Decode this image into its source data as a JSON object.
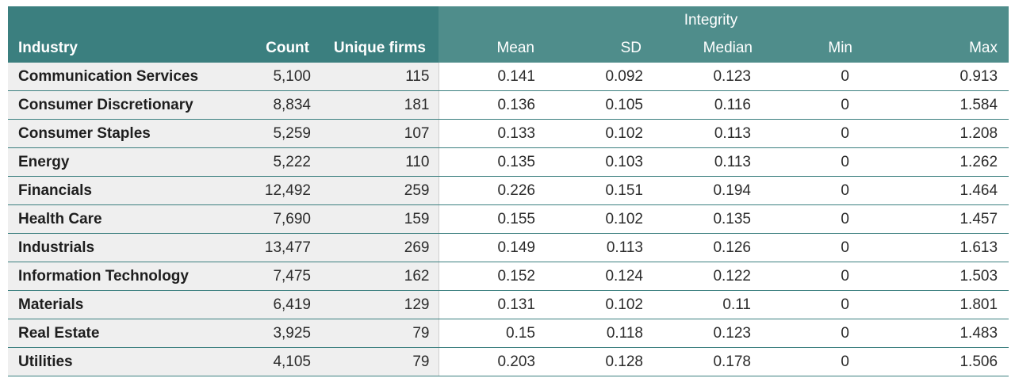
{
  "headers": {
    "group": "Integrity",
    "industry": "Industry",
    "count": "Count",
    "unique_firms": "Unique firms",
    "mean": "Mean",
    "sd": "SD",
    "median": "Median",
    "min": "Min",
    "max": "Max"
  },
  "rows": [
    {
      "industry": "Communication Services",
      "count": "5,100",
      "unique_firms": "115",
      "mean": "0.141",
      "sd": "0.092",
      "median": "0.123",
      "min": "0",
      "max": "0.913"
    },
    {
      "industry": "Consumer Discretionary",
      "count": "8,834",
      "unique_firms": "181",
      "mean": "0.136",
      "sd": "0.105",
      "median": "0.116",
      "min": "0",
      "max": "1.584"
    },
    {
      "industry": "Consumer Staples",
      "count": "5,259",
      "unique_firms": "107",
      "mean": "0.133",
      "sd": "0.102",
      "median": "0.113",
      "min": "0",
      "max": "1.208"
    },
    {
      "industry": "Energy",
      "count": "5,222",
      "unique_firms": "110",
      "mean": "0.135",
      "sd": "0.103",
      "median": "0.113",
      "min": "0",
      "max": "1.262"
    },
    {
      "industry": "Financials",
      "count": "12,492",
      "unique_firms": "259",
      "mean": "0.226",
      "sd": "0.151",
      "median": "0.194",
      "min": "0",
      "max": "1.464"
    },
    {
      "industry": "Health Care",
      "count": "7,690",
      "unique_firms": "159",
      "mean": "0.155",
      "sd": "0.102",
      "median": "0.135",
      "min": "0",
      "max": "1.457"
    },
    {
      "industry": "Industrials",
      "count": "13,477",
      "unique_firms": "269",
      "mean": "0.149",
      "sd": "0.113",
      "median": "0.126",
      "min": "0",
      "max": "1.613"
    },
    {
      "industry": "Information Technology",
      "count": "7,475",
      "unique_firms": "162",
      "mean": "0.152",
      "sd": "0.124",
      "median": "0.122",
      "min": "0",
      "max": "1.503"
    },
    {
      "industry": "Materials",
      "count": "6,419",
      "unique_firms": "129",
      "mean": "0.131",
      "sd": "0.102",
      "median": "0.11",
      "min": "0",
      "max": "1.801"
    },
    {
      "industry": "Real Estate",
      "count": "3,925",
      "unique_firms": "79",
      "mean": "0.15",
      "sd": "0.118",
      "median": "0.123",
      "min": "0",
      "max": "1.483"
    },
    {
      "industry": "Utilities",
      "count": "4,105",
      "unique_firms": "79",
      "mean": "0.203",
      "sd": "0.128",
      "median": "0.178",
      "min": "0",
      "max": "1.506"
    }
  ],
  "colors": {
    "header_dark": "#3b7f7f",
    "header_light": "#4f8d8b",
    "row_label_bg": "#efefef"
  }
}
